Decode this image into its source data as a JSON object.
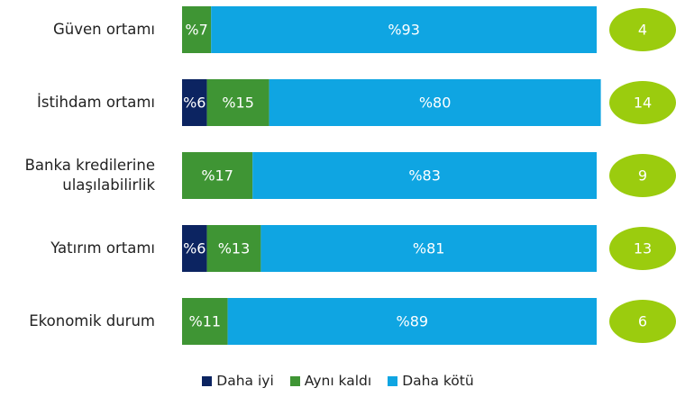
{
  "chart_data": {
    "type": "stacked-bar-horizontal",
    "categories": [
      "Güven ortamı",
      "İstihdam ortamı",
      "Banka kredilerine ulaşılabilirlik",
      "Yatırım ortamı",
      "Ekonomik durum"
    ],
    "xlim": [
      0,
      100
    ],
    "series": [
      {
        "name": "Daha iyi",
        "color": "#0c2461",
        "values": [
          null,
          6,
          null,
          6,
          null
        ],
        "value_labels": [
          null,
          "%6",
          null,
          "%6",
          null
        ]
      },
      {
        "name": "Aynı kaldı",
        "color": "#3f9534",
        "values": [
          7,
          15,
          17,
          13,
          11
        ],
        "value_labels": [
          "%7",
          "%15",
          "%17",
          "%13",
          "%11"
        ]
      },
      {
        "name": "Daha kötü",
        "color": "#0fa5e2",
        "values": [
          93,
          80,
          83,
          81,
          89
        ],
        "value_labels": [
          "%93",
          "%80",
          "%83",
          "%81",
          "%89"
        ]
      }
    ],
    "badges": [
      4,
      14,
      9,
      13,
      6
    ],
    "badge_color": "#9bcc0e",
    "legend": "bottom"
  }
}
